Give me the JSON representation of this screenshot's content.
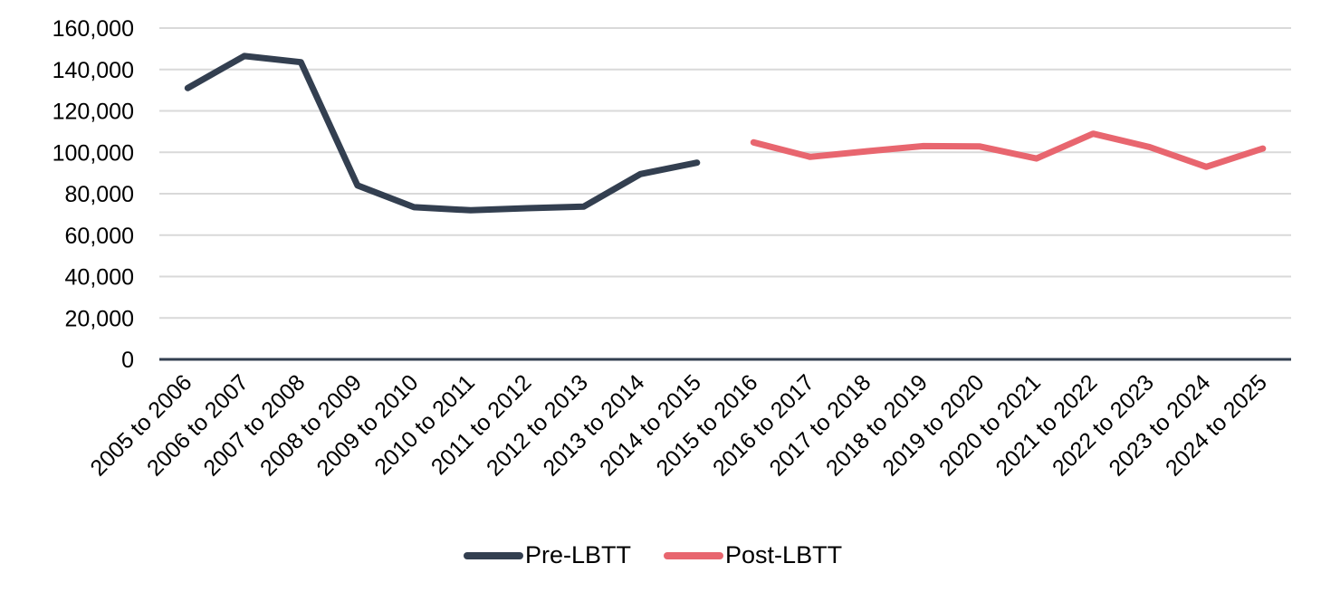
{
  "chart_data": {
    "type": "line",
    "title": "",
    "xlabel": "",
    "ylabel": "",
    "ylim": [
      0,
      160000
    ],
    "yticks": [
      0,
      20000,
      40000,
      60000,
      80000,
      100000,
      120000,
      140000,
      160000
    ],
    "ytick_labels": [
      "0",
      "20,000",
      "40,000",
      "60,000",
      "80,000",
      "100,000",
      "120,000",
      "140,000",
      "160,000"
    ],
    "grid": true,
    "legend_position": "bottom",
    "categories": [
      "2005 to 2006",
      "2006 to 2007",
      "2007 to 2008",
      "2008 to 2009",
      "2009 to 2010",
      "2010 to 2011",
      "2011 to 2012",
      "2012 to 2013",
      "2013 to 2014",
      "2014 to 2015",
      "2015 to 2016",
      "2016 to 2017",
      "2017 to 2018",
      "2018 to 2019",
      "2019 to 2020",
      "2020 to 2021",
      "2021 to 2022",
      "2022 to 2023",
      "2023 to 2024",
      "2024 to 2025"
    ],
    "series": [
      {
        "name": "Pre-LBTT",
        "color": "#333f50",
        "values": [
          131000,
          146500,
          143500,
          84000,
          73500,
          72000,
          73000,
          73800,
          89500,
          95000,
          null,
          null,
          null,
          null,
          null,
          null,
          null,
          null,
          null,
          null
        ]
      },
      {
        "name": "Post-LBTT",
        "color": "#e8666f",
        "values": [
          null,
          null,
          null,
          null,
          null,
          null,
          null,
          null,
          null,
          null,
          104800,
          97800,
          100500,
          103000,
          102800,
          97000,
          109000,
          102500,
          93000,
          101800
        ]
      }
    ]
  },
  "colors": {
    "gridline": "#d9d9d9",
    "axis": "#333f50"
  }
}
